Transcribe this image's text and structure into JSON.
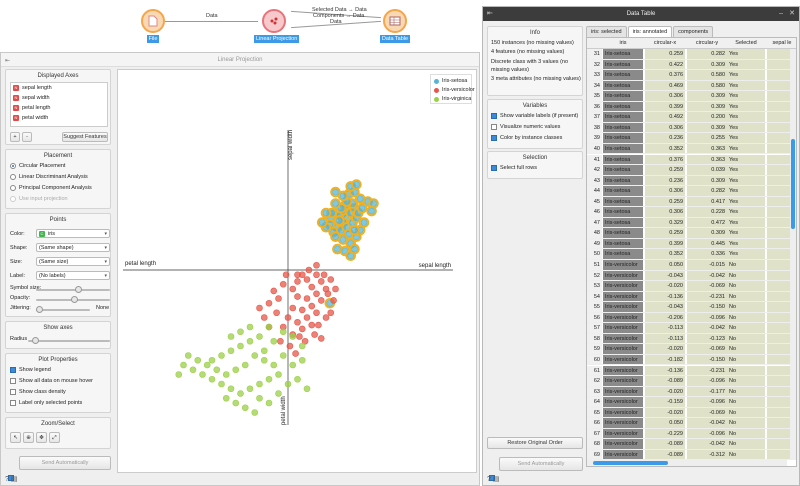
{
  "canvas": {
    "nodes": [
      {
        "name": "File",
        "color": "#f5a54a"
      },
      {
        "name": "Linear Projection",
        "color": "#e8737a"
      },
      {
        "name": "Data Table",
        "color": "#f5a54a"
      }
    ],
    "edges": [
      {
        "label": "Data"
      },
      {
        "label": "Selected Data → Data"
      },
      {
        "label": "Components → Data"
      },
      {
        "label": "Data"
      }
    ]
  },
  "linear_projection": {
    "window_title": "Linear Projection",
    "displayed_axes": {
      "title": "Displayed Axes",
      "items": [
        "sepal length",
        "sepal width",
        "petal length",
        "petal width"
      ],
      "add_label": "+",
      "remove_label": "-",
      "suggest_label": "Suggest Features"
    },
    "placement": {
      "title": "Placement",
      "options": [
        "Circular Placement",
        "Linear Discriminant Analysis",
        "Principal Component Analysis",
        "Use input projection"
      ],
      "selected": 0
    },
    "points": {
      "title": "Points",
      "color_label": "Color:",
      "color_value": "iris",
      "shape_label": "Shape:",
      "shape_value": "(Same shape)",
      "size_label": "Size:",
      "size_value": "(Same size)",
      "label_label": "Label:",
      "label_value": "(No labels)",
      "symbol_size_label": "Symbol size:",
      "symbol_size": 0.58,
      "opacity_label": "Opacity:",
      "opacity": 0.52,
      "jittering_label": "Jittering:",
      "jittering_value": "None",
      "jittering": 0.0
    },
    "show_axes": {
      "title": "Show axes",
      "radius_label": "Radius",
      "radius": 0.05
    },
    "plot_properties": {
      "title": "Plot Properties",
      "options": [
        {
          "label": "Show legend",
          "checked": true
        },
        {
          "label": "Show all data on mouse hover",
          "checked": false
        },
        {
          "label": "Show class density",
          "checked": false
        },
        {
          "label": "Label only selected points",
          "checked": false
        }
      ]
    },
    "zoom_select": {
      "title": "Zoom/Select",
      "tools": [
        "pointer-icon",
        "zoom-icon",
        "pan-icon",
        "fit-icon"
      ]
    },
    "send_label": "Send Automatically",
    "status_icons": [
      "help-icon",
      "report-icon"
    ]
  },
  "chart_data": {
    "type": "scatter",
    "axes": [
      {
        "label": "sepal width",
        "dir": "up"
      },
      {
        "label": "sepal length",
        "dir": "right"
      },
      {
        "label": "petal length",
        "dir": "left"
      },
      {
        "label": "petal width",
        "dir": "down"
      }
    ],
    "legend": {
      "placement": "top-right"
    },
    "series": [
      {
        "name": "Iris-setosa",
        "color": "#55b4d8",
        "selected": true,
        "points": [
          [
            0.45,
            0.55
          ],
          [
            0.5,
            0.6
          ],
          [
            0.55,
            0.58
          ],
          [
            0.6,
            0.62
          ],
          [
            0.62,
            0.55
          ],
          [
            0.66,
            0.6
          ],
          [
            0.7,
            0.65
          ],
          [
            0.58,
            0.5
          ],
          [
            0.52,
            0.45
          ],
          [
            0.48,
            0.4
          ],
          [
            0.56,
            0.42
          ],
          [
            0.62,
            0.45
          ],
          [
            0.68,
            0.5
          ],
          [
            0.72,
            0.55
          ],
          [
            0.64,
            0.38
          ],
          [
            0.58,
            0.32
          ],
          [
            0.66,
            0.28
          ],
          [
            0.72,
            0.35
          ],
          [
            0.76,
            0.42
          ],
          [
            0.5,
            0.35
          ],
          [
            0.44,
            0.48
          ],
          [
            0.54,
            0.52
          ],
          [
            0.6,
            0.68
          ],
          [
            0.68,
            0.7
          ],
          [
            0.74,
            0.6
          ],
          [
            0.8,
            0.5
          ],
          [
            0.7,
            0.42
          ],
          [
            0.62,
            0.72
          ],
          [
            0.56,
            0.65
          ],
          [
            0.5,
            0.7
          ],
          [
            0.64,
            0.8
          ],
          [
            0.58,
            0.78
          ],
          [
            0.4,
            0.45
          ],
          [
            0.46,
            0.6
          ],
          [
            0.78,
            0.65
          ],
          [
            0.84,
            0.72
          ],
          [
            0.9,
            0.7
          ],
          [
            0.88,
            0.62
          ],
          [
            0.7,
            0.82
          ],
          [
            0.76,
            0.75
          ],
          [
            0.52,
            0.22
          ],
          [
            0.6,
            0.2
          ],
          [
            0.66,
            0.15
          ],
          [
            0.7,
            0.22
          ],
          [
            0.5,
            0.82
          ],
          [
            0.4,
            0.6
          ],
          [
            0.36,
            0.5
          ],
          [
            0.66,
            0.88
          ],
          [
            0.72,
            0.9
          ],
          [
            0.44,
            -0.35
          ]
        ]
      },
      {
        "name": "Iris-versicolor",
        "color": "#e5574a",
        "selected": false,
        "points": [
          [
            -0.05,
            -0.15
          ],
          [
            0.05,
            -0.2
          ],
          [
            0.1,
            -0.12
          ],
          [
            0.15,
            -0.05
          ],
          [
            0.2,
            -0.1
          ],
          [
            0.25,
            -0.18
          ],
          [
            0.3,
            -0.05
          ],
          [
            0.35,
            -0.12
          ],
          [
            0.4,
            -0.2
          ],
          [
            0.1,
            -0.28
          ],
          [
            0.2,
            -0.3
          ],
          [
            0.3,
            -0.25
          ],
          [
            0.05,
            -0.4
          ],
          [
            0.15,
            -0.42
          ],
          [
            0.25,
            -0.38
          ],
          [
            0.35,
            -0.32
          ],
          [
            -0.1,
            -0.3
          ],
          [
            -0.15,
            -0.22
          ],
          [
            -0.2,
            -0.35
          ],
          [
            0.0,
            -0.5
          ],
          [
            0.1,
            -0.55
          ],
          [
            0.2,
            -0.5
          ],
          [
            0.3,
            -0.45
          ],
          [
            -0.05,
            -0.6
          ],
          [
            0.05,
            -0.68
          ],
          [
            0.15,
            -0.62
          ],
          [
            0.25,
            -0.58
          ],
          [
            -0.12,
            -0.45
          ],
          [
            -0.25,
            -0.5
          ],
          [
            0.38,
            -0.05
          ],
          [
            0.45,
            -0.1
          ],
          [
            0.42,
            -0.25
          ],
          [
            0.48,
            -0.32
          ],
          [
            0.32,
            -0.58
          ],
          [
            0.4,
            -0.5
          ],
          [
            -0.2,
            -0.6
          ],
          [
            -0.3,
            -0.4
          ],
          [
            0.1,
            -0.05
          ],
          [
            0.22,
            0.0
          ],
          [
            0.3,
            0.05
          ],
          [
            -0.02,
            -0.05
          ],
          [
            0.12,
            -0.7
          ],
          [
            0.02,
            -0.8
          ],
          [
            0.18,
            -0.75
          ],
          [
            -0.08,
            -0.75
          ],
          [
            0.45,
            -0.45
          ],
          [
            0.5,
            -0.2
          ],
          [
            0.28,
            -0.68
          ],
          [
            0.08,
            -0.88
          ],
          [
            0.35,
            -0.72
          ]
        ]
      },
      {
        "name": "Iris-virginica",
        "color": "#9ccf48",
        "selected": false,
        "points": [
          [
            -0.2,
            -0.6
          ],
          [
            -0.3,
            -0.7
          ],
          [
            -0.4,
            -0.75
          ],
          [
            -0.5,
            -0.8
          ],
          [
            -0.6,
            -0.85
          ],
          [
            -0.7,
            -0.9
          ],
          [
            -0.8,
            -0.95
          ],
          [
            -0.35,
            -0.9
          ],
          [
            -0.45,
            -1.0
          ],
          [
            -0.55,
            -1.05
          ],
          [
            -0.65,
            -1.1
          ],
          [
            -0.25,
            -0.85
          ],
          [
            -0.15,
            -0.75
          ],
          [
            -0.05,
            -0.9
          ],
          [
            0.05,
            -1.0
          ],
          [
            0.15,
            -0.95
          ],
          [
            -0.1,
            -1.1
          ],
          [
            -0.2,
            -1.15
          ],
          [
            -0.3,
            -1.2
          ],
          [
            -0.4,
            -1.25
          ],
          [
            -0.5,
            -1.3
          ],
          [
            -0.6,
            -1.25
          ],
          [
            -0.7,
            -1.2
          ],
          [
            -0.8,
            -1.15
          ],
          [
            -0.9,
            -1.1
          ],
          [
            -1.0,
            -1.05
          ],
          [
            -0.85,
            -1.0
          ],
          [
            -0.75,
            -1.05
          ],
          [
            -0.95,
            -0.95
          ],
          [
            -1.05,
            -0.9
          ],
          [
            -0.3,
            -1.35
          ],
          [
            -0.2,
            -1.4
          ],
          [
            -0.1,
            -1.3
          ],
          [
            0.0,
            -1.2
          ],
          [
            0.1,
            -1.15
          ],
          [
            0.2,
            -1.25
          ],
          [
            -0.55,
            -1.4
          ],
          [
            -0.45,
            -1.45
          ],
          [
            -0.35,
            -1.5
          ],
          [
            -0.65,
            -1.35
          ],
          [
            -1.1,
            -1.0
          ],
          [
            -1.15,
            -1.1
          ],
          [
            -0.25,
            -0.95
          ],
          [
            -0.15,
            -1.0
          ],
          [
            0.05,
            -0.7
          ],
          [
            -0.05,
            -0.65
          ],
          [
            0.15,
            -0.8
          ],
          [
            -0.4,
            -0.6
          ],
          [
            -0.5,
            -0.65
          ],
          [
            -0.6,
            -0.7
          ]
        ]
      }
    ]
  },
  "data_table": {
    "window_title": "Data Table",
    "info": {
      "title": "Info",
      "lines": [
        "150 instances (no missing values)",
        "4 features (no missing values)",
        "Discrete class with 3 values (no missing values)",
        "3 meta attributes (no missing values)"
      ]
    },
    "variables": {
      "title": "Variables",
      "options": [
        {
          "label": "Show variable labels (if present)",
          "checked": true
        },
        {
          "label": "Visualize numeric values",
          "checked": false
        },
        {
          "label": "Color by instance classes",
          "checked": true
        }
      ]
    },
    "selection": {
      "title": "Selection",
      "options": [
        {
          "label": "Select full rows",
          "checked": true
        }
      ]
    },
    "restore_label": "Restore Original Order",
    "send_label": "Send Automatically",
    "tabs": [
      "iris: selected",
      "iris: annotated",
      "components"
    ],
    "active_tab": 1,
    "columns": [
      "iris",
      "circular-x",
      "circular-y",
      "Selected",
      "sepal le"
    ],
    "rows": [
      [
        "31",
        "Iris-setosa",
        "0.259",
        "0.282",
        "Yes"
      ],
      [
        "32",
        "Iris-setosa",
        "0.422",
        "0.309",
        "Yes"
      ],
      [
        "33",
        "Iris-setosa",
        "0.376",
        "0.580",
        "Yes"
      ],
      [
        "34",
        "Iris-setosa",
        "0.469",
        "0.580",
        "Yes"
      ],
      [
        "35",
        "Iris-setosa",
        "0.306",
        "0.309",
        "Yes"
      ],
      [
        "36",
        "Iris-setosa",
        "0.399",
        "0.309",
        "Yes"
      ],
      [
        "37",
        "Iris-setosa",
        "0.492",
        "0.200",
        "Yes"
      ],
      [
        "38",
        "Iris-setosa",
        "0.306",
        "0.309",
        "Yes"
      ],
      [
        "39",
        "Iris-setosa",
        "0.236",
        "0.255",
        "Yes"
      ],
      [
        "40",
        "Iris-setosa",
        "0.352",
        "0.363",
        "Yes"
      ],
      [
        "41",
        "Iris-setosa",
        "0.376",
        "0.363",
        "Yes"
      ],
      [
        "42",
        "Iris-setosa",
        "0.259",
        "0.039",
        "Yes"
      ],
      [
        "43",
        "Iris-setosa",
        "0.236",
        "0.309",
        "Yes"
      ],
      [
        "44",
        "Iris-setosa",
        "0.306",
        "0.282",
        "Yes"
      ],
      [
        "45",
        "Iris-setosa",
        "0.259",
        "0.417",
        "Yes"
      ],
      [
        "46",
        "Iris-setosa",
        "0.306",
        "0.228",
        "Yes"
      ],
      [
        "47",
        "Iris-setosa",
        "0.329",
        "0.472",
        "Yes"
      ],
      [
        "48",
        "Iris-setosa",
        "0.259",
        "0.309",
        "Yes"
      ],
      [
        "49",
        "Iris-setosa",
        "0.399",
        "0.445",
        "Yes"
      ],
      [
        "50",
        "Iris-setosa",
        "0.352",
        "0.336",
        "Yes"
      ],
      [
        "51",
        "Iris-versicolor",
        "0.050",
        "-0.015",
        "No"
      ],
      [
        "52",
        "Iris-versicolor",
        "-0.043",
        "-0.042",
        "No"
      ],
      [
        "53",
        "Iris-versicolor",
        "-0.020",
        "-0.069",
        "No"
      ],
      [
        "54",
        "Iris-versicolor",
        "-0.136",
        "-0.231",
        "No"
      ],
      [
        "55",
        "Iris-versicolor",
        "-0.043",
        "-0.150",
        "No"
      ],
      [
        "56",
        "Iris-versicolor",
        "-0.206",
        "-0.096",
        "No"
      ],
      [
        "57",
        "Iris-versicolor",
        "-0.113",
        "-0.042",
        "No"
      ],
      [
        "58",
        "Iris-versicolor",
        "-0.113",
        "-0.123",
        "No"
      ],
      [
        "59",
        "Iris-versicolor",
        "-0.020",
        "-0.069",
        "No"
      ],
      [
        "60",
        "Iris-versicolor",
        "-0.182",
        "-0.150",
        "No"
      ],
      [
        "61",
        "Iris-versicolor",
        "-0.136",
        "-0.231",
        "No"
      ],
      [
        "62",
        "Iris-versicolor",
        "-0.089",
        "-0.096",
        "No"
      ],
      [
        "63",
        "Iris-versicolor",
        "-0.020",
        "-0.177",
        "No"
      ],
      [
        "64",
        "Iris-versicolor",
        "-0.159",
        "-0.096",
        "No"
      ],
      [
        "65",
        "Iris-versicolor",
        "-0.020",
        "-0.069",
        "No"
      ],
      [
        "66",
        "Iris-versicolor",
        "0.050",
        "-0.042",
        "No"
      ],
      [
        "67",
        "Iris-versicolor",
        "-0.229",
        "-0.096",
        "No"
      ],
      [
        "68",
        "Iris-versicolor",
        "-0.089",
        "-0.042",
        "No"
      ],
      [
        "69",
        "Iris-versicolor",
        "-0.089",
        "-0.312",
        "No"
      ]
    ],
    "status_icons": [
      "help-icon",
      "report-icon"
    ]
  }
}
